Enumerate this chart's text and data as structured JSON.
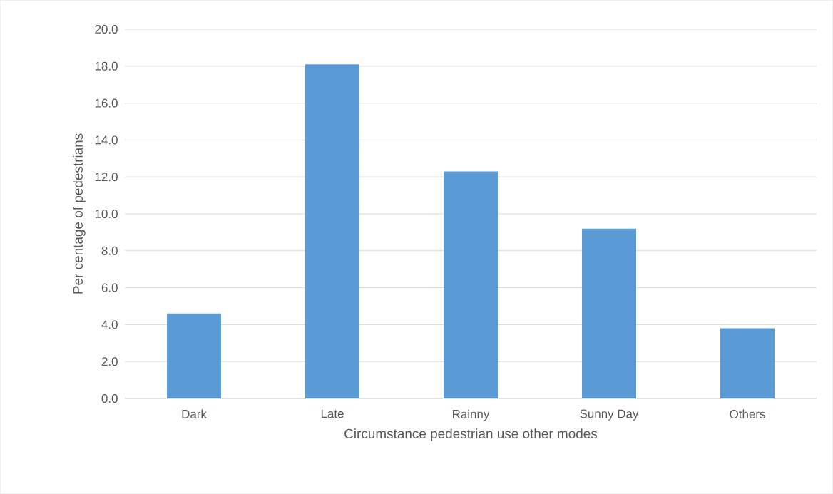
{
  "chart_data": {
    "type": "bar",
    "xlabel": "Circumstance pedestrian use other modes",
    "ylabel": "Per centage of pedestrians",
    "categories": [
      "Dark",
      "Late",
      "Rainny",
      "Sunny Day",
      "Others"
    ],
    "values": [
      4.6,
      18.1,
      12.3,
      9.2,
      3.8
    ],
    "color": "#5b9bd5",
    "ylim": [
      0,
      20
    ],
    "yticks": [
      {
        "value": 0,
        "label": "0.0"
      },
      {
        "value": 2,
        "label": "2.0"
      },
      {
        "value": 4,
        "label": "4.0"
      },
      {
        "value": 6,
        "label": "6.0"
      },
      {
        "value": 8,
        "label": "8.0"
      },
      {
        "value": 10,
        "label": "10.0"
      },
      {
        "value": 12,
        "label": "12.0"
      },
      {
        "value": 14,
        "label": "14.0"
      },
      {
        "value": 16,
        "label": "16.0"
      },
      {
        "value": 18,
        "label": "18.0"
      },
      {
        "value": 20,
        "label": "20.0"
      }
    ],
    "grid": "y"
  }
}
